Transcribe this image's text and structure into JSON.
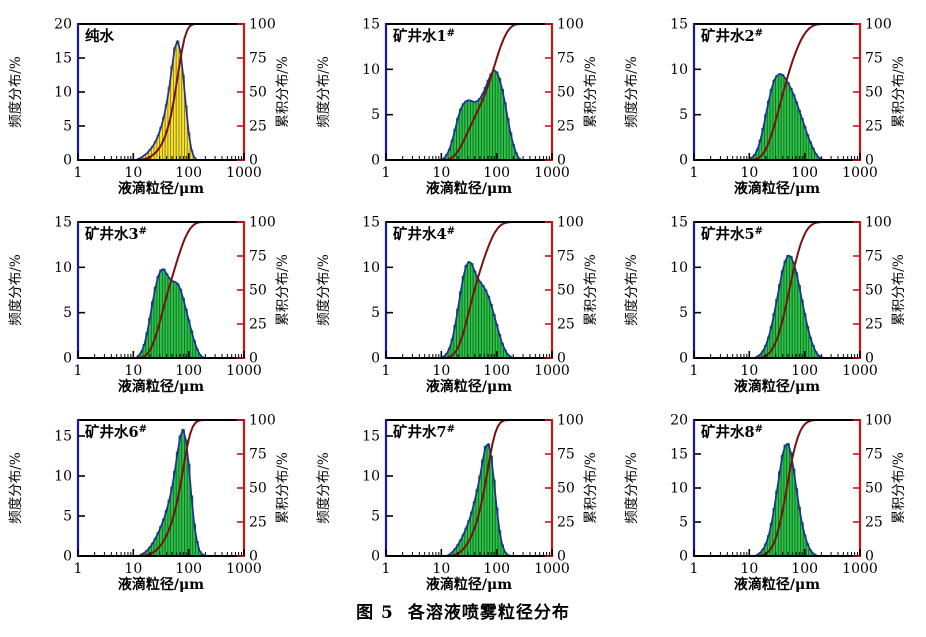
{
  "figure": {
    "caption_prefix": "图 5",
    "caption_text": "各溶液喷雾粒径分布"
  },
  "axes": {
    "x_label": "液滴粒径/μm",
    "x_log_min": 0,
    "x_log_max": 3,
    "x_ticks": [
      {
        "log": 0,
        "label": "1"
      },
      {
        "log": 1,
        "label": "10"
      },
      {
        "log": 2,
        "label": "100"
      },
      {
        "log": 3,
        "label": "1000"
      }
    ],
    "left_label": "频度分布/%",
    "right_label": "累积分布/%",
    "right_ticks": [
      0,
      25,
      50,
      75,
      100
    ],
    "right_max": 100
  },
  "colors": {
    "left_axis": "#1616b4",
    "right_axis": "#cc1414",
    "top_bottom_axis": "#000000",
    "envelope": "#1c2fa0",
    "cumulative": "#7a1111",
    "yellow_fill": "#f5e33a",
    "yellow_edge": "#8f7d00",
    "green_fill": "#2fc04a",
    "green_edge": "#0c6e1d",
    "text": "#000000"
  },
  "chart_data": [
    {
      "type": "bar",
      "label": "纯水",
      "label_sup": "",
      "y_ticks": [
        0,
        5,
        10,
        15,
        20
      ],
      "y_max": 20,
      "bar_fill": "#f5e33a",
      "bar_edge": "#8f7d00",
      "hist": {
        "log_start": 1.1,
        "log_step": 0.05,
        "heights": [
          0.2,
          0.4,
          0.7,
          1.0,
          1.5,
          2.0,
          2.7,
          3.6,
          4.8,
          6.3,
          8.2,
          10.7,
          13.8,
          16.5,
          17.5,
          16.0,
          12.5,
          8.0,
          4.0,
          1.5,
          0.4
        ]
      }
    },
    {
      "type": "bar",
      "label": "矿井水1",
      "label_sup": "#",
      "y_ticks": [
        0,
        5,
        10,
        15
      ],
      "y_max": 15,
      "bar_fill": "#2fc04a",
      "bar_edge": "#0c6e1d",
      "hist": {
        "log_start": 1.05,
        "log_step": 0.05,
        "heights": [
          0.2,
          0.6,
          1.2,
          2.2,
          3.4,
          4.6,
          5.6,
          6.2,
          6.5,
          6.6,
          6.5,
          6.4,
          6.5,
          6.8,
          7.3,
          8.0,
          8.8,
          9.5,
          9.9,
          9.7,
          9.0,
          7.8,
          6.3,
          4.6,
          3.0,
          1.7,
          0.8,
          0.2
        ]
      }
    },
    {
      "type": "bar",
      "label": "矿井水2",
      "label_sup": "#",
      "y_ticks": [
        0,
        5,
        10,
        15
      ],
      "y_max": 15,
      "bar_fill": "#2fc04a",
      "bar_edge": "#0c6e1d",
      "hist": {
        "log_start": 1.05,
        "log_step": 0.05,
        "heights": [
          0.3,
          0.6,
          1.2,
          2.2,
          3.5,
          5.0,
          6.5,
          7.8,
          8.8,
          9.3,
          9.5,
          9.4,
          9.0,
          8.5,
          7.9,
          7.2,
          6.4,
          5.5,
          4.6,
          3.7,
          2.8,
          2.0,
          1.3,
          0.7,
          0.3,
          0.1
        ]
      }
    },
    {
      "type": "bar",
      "label": "矿井水3",
      "label_sup": "#",
      "y_ticks": [
        0,
        5,
        10,
        15
      ],
      "y_max": 15,
      "bar_fill": "#2fc04a",
      "bar_edge": "#0c6e1d",
      "hist": {
        "log_start": 1.1,
        "log_step": 0.05,
        "heights": [
          0.3,
          0.7,
          1.5,
          2.8,
          4.4,
          6.2,
          7.8,
          9.0,
          9.7,
          9.8,
          9.3,
          8.8,
          8.5,
          8.4,
          8.2,
          7.6,
          6.6,
          5.4,
          4.2,
          3.0,
          1.9,
          1.0,
          0.4,
          0.1
        ]
      }
    },
    {
      "type": "bar",
      "label": "矿井水4",
      "label_sup": "#",
      "y_ticks": [
        0,
        5,
        10,
        15
      ],
      "y_max": 15,
      "bar_fill": "#2fc04a",
      "bar_edge": "#0c6e1d",
      "hist": {
        "log_start": 1.05,
        "log_step": 0.05,
        "heights": [
          0.2,
          0.5,
          1.1,
          2.1,
          3.6,
          5.4,
          7.3,
          9.0,
          10.2,
          10.6,
          10.4,
          9.6,
          8.9,
          8.4,
          8.0,
          7.5,
          6.8,
          5.9,
          4.8,
          3.7,
          2.6,
          1.6,
          0.9,
          0.4,
          0.15
        ]
      }
    },
    {
      "type": "bar",
      "label": "矿井水5",
      "label_sup": "#",
      "y_ticks": [
        0,
        5,
        10,
        15
      ],
      "y_max": 15,
      "bar_fill": "#2fc04a",
      "bar_edge": "#0c6e1d",
      "hist": {
        "log_start": 1.15,
        "log_step": 0.05,
        "heights": [
          0.2,
          0.4,
          0.8,
          1.4,
          2.3,
          3.5,
          4.9,
          6.5,
          8.1,
          9.6,
          10.7,
          11.3,
          11.2,
          10.5,
          9.4,
          8.0,
          6.4,
          4.9,
          3.5,
          2.3,
          1.4,
          0.7,
          0.3,
          0.1
        ]
      }
    },
    {
      "type": "bar",
      "label": "矿井水6",
      "label_sup": "#",
      "y_ticks": [
        0,
        5,
        10,
        15
      ],
      "y_max": 17,
      "bar_fill": "#2fc04a",
      "bar_edge": "#0c6e1d",
      "hist": {
        "log_start": 1.15,
        "log_step": 0.05,
        "heights": [
          0.2,
          0.4,
          0.7,
          1.1,
          1.6,
          2.2,
          2.9,
          3.7,
          4.6,
          5.7,
          7.0,
          8.6,
          10.6,
          13.0,
          15.0,
          15.8,
          14.5,
          11.5,
          7.5,
          4.0,
          1.8,
          0.6,
          0.2
        ]
      }
    },
    {
      "type": "bar",
      "label": "矿井水7",
      "label_sup": "#",
      "y_ticks": [
        0,
        5,
        10,
        15
      ],
      "y_max": 17,
      "bar_fill": "#2fc04a",
      "bar_edge": "#0c6e1d",
      "hist": {
        "log_start": 1.15,
        "log_step": 0.05,
        "heights": [
          0.2,
          0.5,
          0.9,
          1.4,
          2.0,
          2.7,
          3.5,
          4.4,
          5.5,
          6.8,
          8.3,
          10.0,
          12.0,
          13.7,
          14.0,
          12.5,
          9.5,
          6.0,
          3.2,
          1.4,
          0.5,
          0.15
        ]
      }
    },
    {
      "type": "bar",
      "label": "矿井水8",
      "label_sup": "#",
      "y_ticks": [
        0,
        5,
        10,
        15,
        20
      ],
      "y_max": 20,
      "bar_fill": "#2fc04a",
      "bar_edge": "#0c6e1d",
      "hist": {
        "log_start": 1.15,
        "log_step": 0.05,
        "heights": [
          0.2,
          0.5,
          1.0,
          1.8,
          3.0,
          4.8,
          7.0,
          9.6,
          12.4,
          14.8,
          16.3,
          16.5,
          15.2,
          12.8,
          9.9,
          7.2,
          4.9,
          3.1,
          1.8,
          0.9,
          0.4,
          0.15
        ]
      }
    }
  ]
}
